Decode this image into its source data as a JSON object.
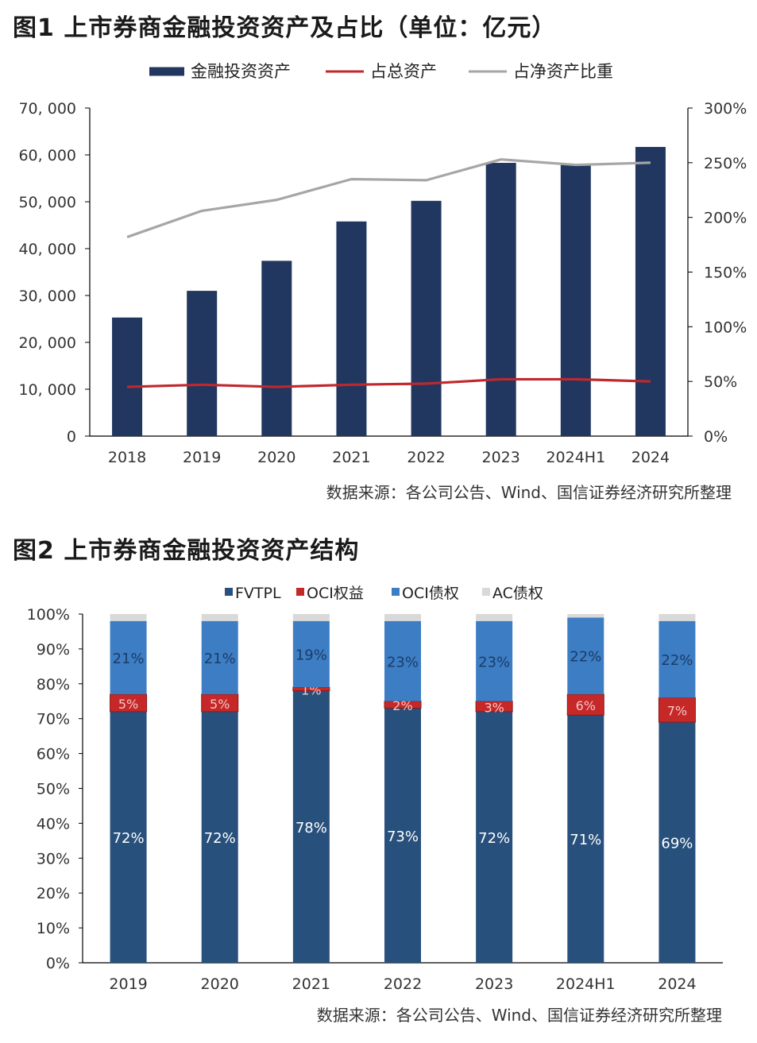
{
  "figure1": {
    "title": "图1  上市券商金融投资资产及占比（单位：亿元）",
    "source": "数据来源：各公司公告、Wind、国信证券经济研究所整理"
  },
  "figure2": {
    "title": "图2  上市券商金融投资资产结构",
    "source": "数据来源：各公司公告、Wind、国信证券经济研究所整理"
  },
  "chart_data": [
    {
      "type": "bar",
      "categories": [
        "2018",
        "2019",
        "2020",
        "2021",
        "2022",
        "2023",
        "2024H1",
        "2024"
      ],
      "series": [
        {
          "name": "金融投资资产",
          "kind": "bar",
          "axis": "left",
          "color": "#22375f",
          "values": [
            25300,
            31000,
            37400,
            45800,
            50200,
            58300,
            58000,
            61700
          ]
        },
        {
          "name": "占总资产",
          "kind": "line",
          "axis": "right",
          "color": "#c0282d",
          "values": [
            45,
            47,
            45,
            47,
            48,
            52,
            52,
            50
          ]
        },
        {
          "name": "占净资产比重",
          "kind": "line",
          "axis": "right",
          "color": "#a6a6a6",
          "values": [
            182,
            206,
            216,
            235,
            234,
            253,
            248,
            250
          ]
        }
      ],
      "ylim_left": [
        0,
        70000
      ],
      "yticks_left": [
        "0",
        "10, 000",
        "20, 000",
        "30, 000",
        "40, 000",
        "50, 000",
        "60, 000",
        "70, 000"
      ],
      "ylim_right": [
        0,
        300
      ],
      "yticks_right": [
        "0%",
        "50%",
        "100%",
        "150%",
        "200%",
        "250%",
        "300%"
      ],
      "legend_position": "top",
      "grid": false
    },
    {
      "type": "bar",
      "stacked": true,
      "categories": [
        "2019",
        "2020",
        "2021",
        "2022",
        "2023",
        "2024H1",
        "2024"
      ],
      "series": [
        {
          "name": "FVTPL",
          "color": "#28507c",
          "values": [
            72,
            72,
            78,
            73,
            72,
            71,
            69
          ]
        },
        {
          "name": "OCI权益",
          "color": "#c62828",
          "values": [
            5,
            5,
            1,
            2,
            3,
            6,
            7
          ]
        },
        {
          "name": "OCI债权",
          "color": "#3d7dc4",
          "values": [
            21,
            21,
            19,
            23,
            23,
            22,
            22
          ]
        },
        {
          "name": "AC债权",
          "color": "#d9d9d9",
          "values": [
            2,
            2,
            2,
            2,
            2,
            1,
            2
          ]
        }
      ],
      "data_labels": [
        [
          "72%",
          "5%",
          "21%",
          ""
        ],
        [
          "72%",
          "5%",
          "21%",
          ""
        ],
        [
          "78%",
          "1%",
          "19%",
          ""
        ],
        [
          "73%",
          "2%",
          "23%",
          ""
        ],
        [
          "72%",
          "3%",
          "23%",
          ""
        ],
        [
          "71%",
          "6%",
          "22%",
          ""
        ],
        [
          "69%",
          "7%",
          "22%",
          ""
        ]
      ],
      "ylim": [
        0,
        100
      ],
      "yticks": [
        "0%",
        "10%",
        "20%",
        "30%",
        "40%",
        "50%",
        "60%",
        "70%",
        "80%",
        "90%",
        "100%"
      ],
      "legend_position": "top",
      "grid": false
    }
  ]
}
